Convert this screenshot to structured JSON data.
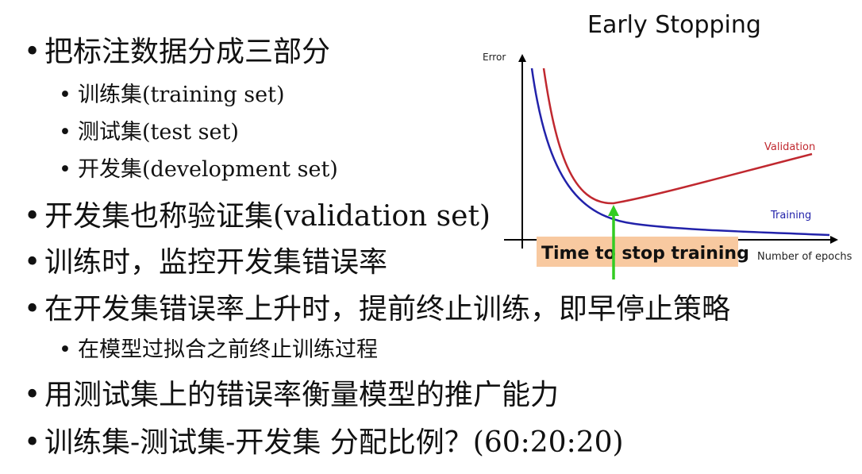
{
  "bullets": [
    {
      "text": "把标注数据分成三部分"
    },
    {
      "text": "训练集(training set)"
    },
    {
      "text": "测试集(test set)"
    },
    {
      "text": "开发集(development set)"
    },
    {
      "text": "开发集也称验证集(validation set)"
    },
    {
      "text": "训练时，监控开发集错误率"
    },
    {
      "text": "在开发集错误率上升时，提前终止训练，即早停止策略"
    },
    {
      "text": "在模型过拟合之前终止训练过程"
    },
    {
      "text": "用测试集上的错误率衡量模型的推广能力"
    },
    {
      "text": "训练集-测试集-开发集 分配比例？(60:20:20)"
    }
  ],
  "bullet_symbol": "•",
  "figure": {
    "title": "Early Stopping",
    "y_axis_label": "Error",
    "x_axis_label": "Number of epochs",
    "validation_label": "Validation",
    "training_label": "Training",
    "stop_label": "Time to stop training"
  },
  "colors": {
    "validation": "#c0282f",
    "training": "#2222aa",
    "stop_marker": "#33cc22",
    "stop_box": "#f8c9a0",
    "label_gray": "#555555"
  }
}
